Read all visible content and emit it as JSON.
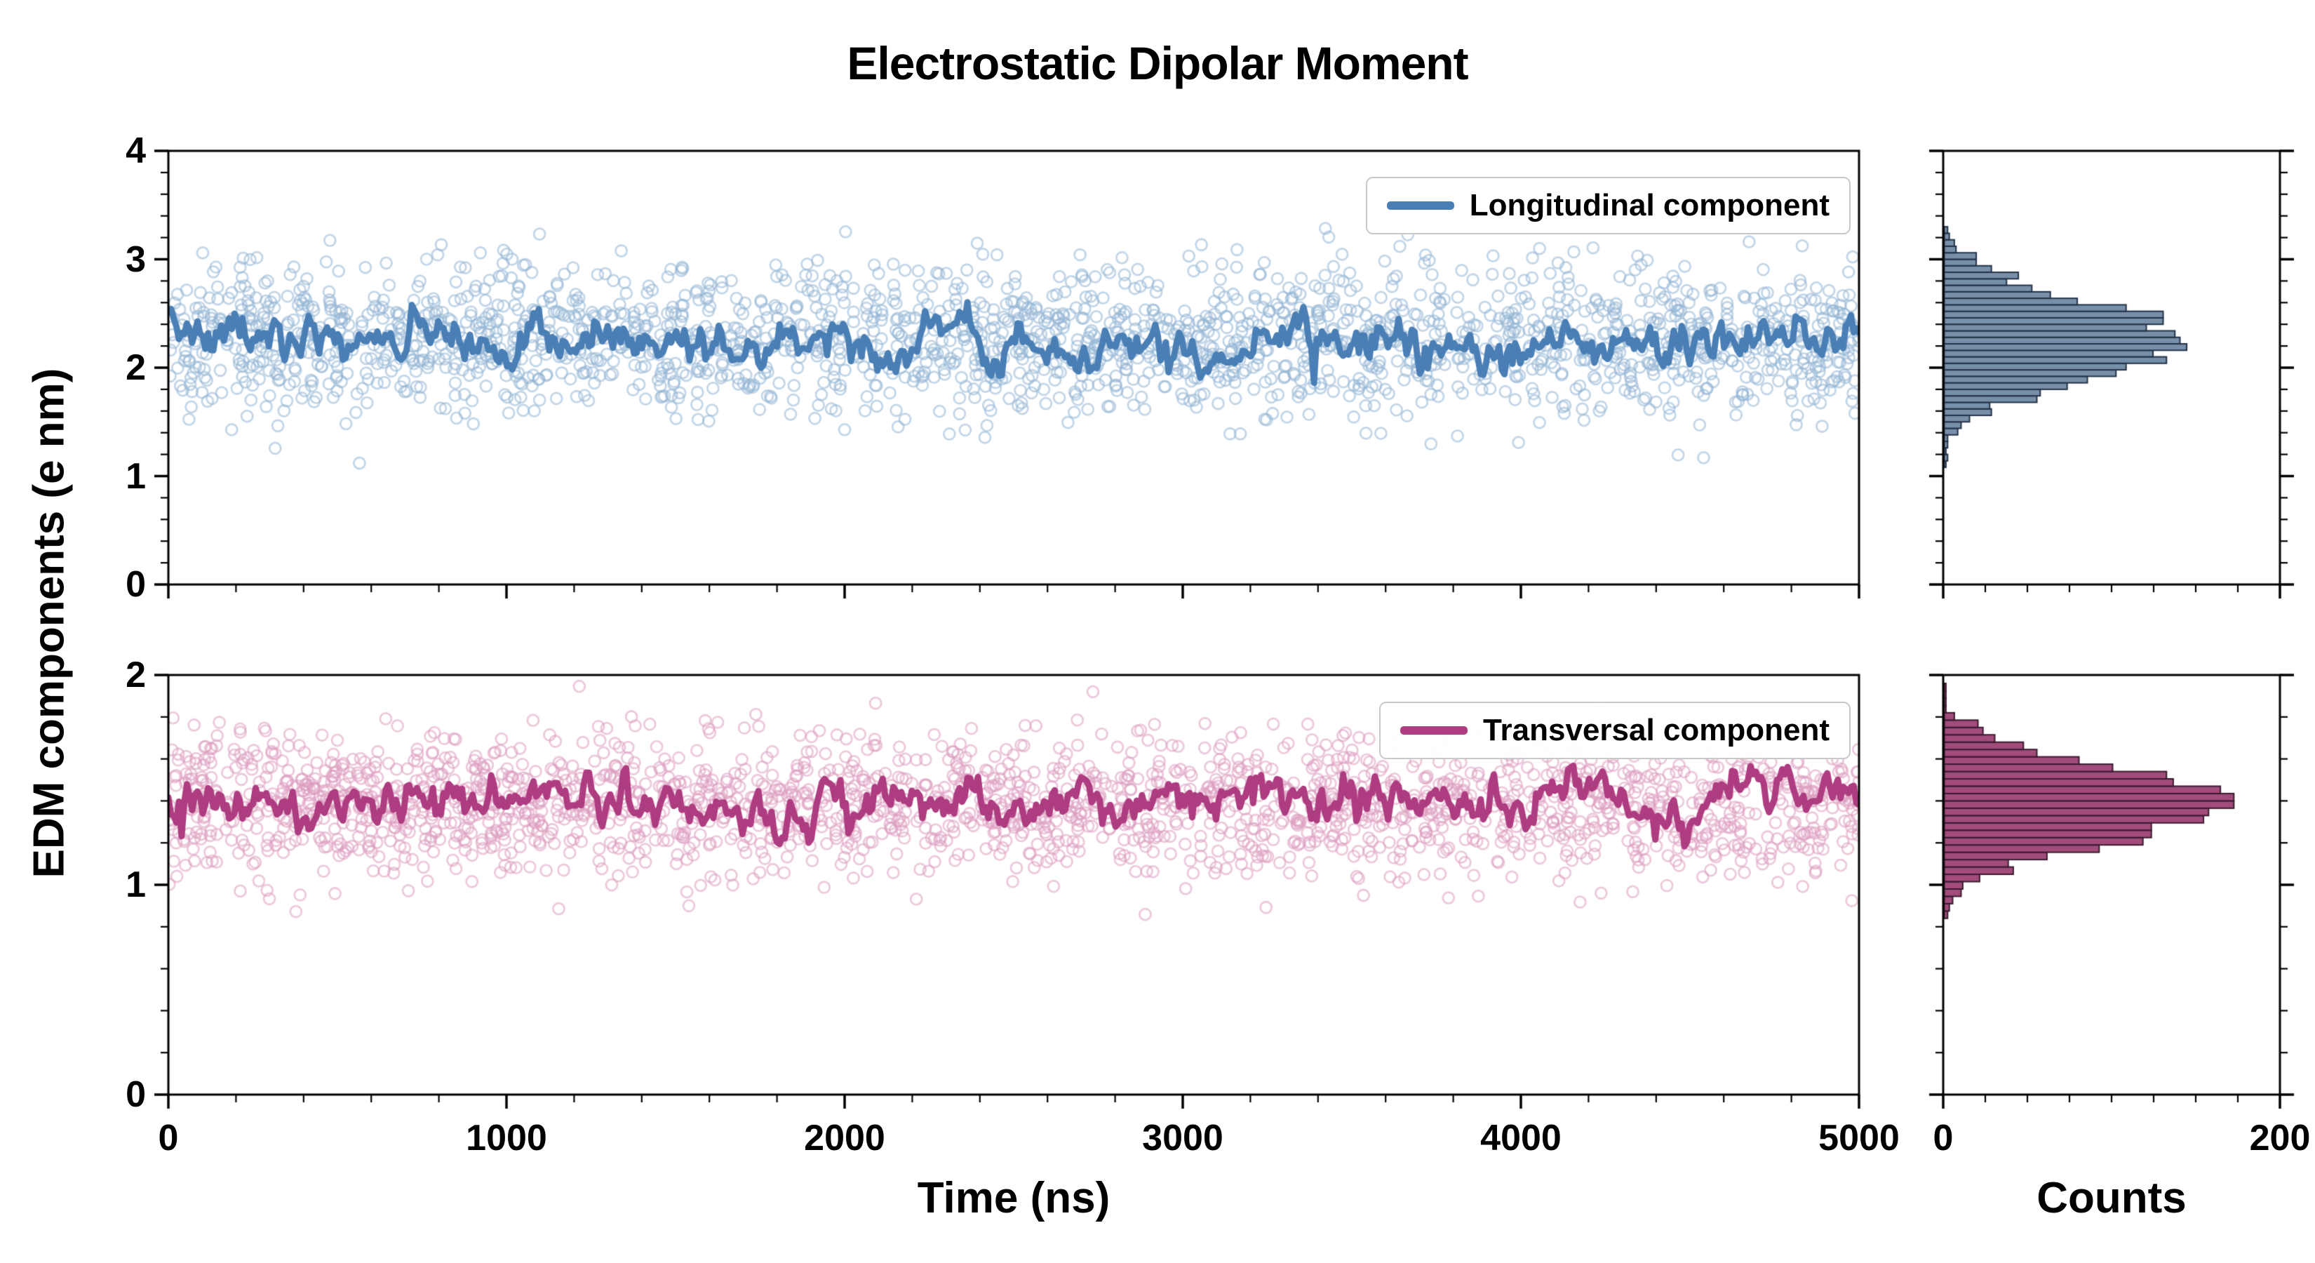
{
  "chart_data": {
    "type": "scatter",
    "title": "Electrostatic Dipolar Moment",
    "xlabel": "Time (ns)",
    "ylabel": "EDM components (e nm)",
    "hist_xlabel": "Counts",
    "layout": {
      "grid": false,
      "legend_position": "upper right",
      "hist_count_range": [
        0,
        200
      ]
    },
    "panels": [
      {
        "id": "longitudinal",
        "legend": "Longitudinal component",
        "row": "top",
        "x_range": [
          0,
          5000
        ],
        "y_range": [
          0,
          4
        ],
        "x_major_ticks": [
          0,
          1000,
          2000,
          3000,
          4000,
          5000
        ],
        "x_tick_labels": [
          "0",
          "1000",
          "2000",
          "3000",
          "4000",
          "5000"
        ],
        "x_minor_step": 200,
        "y_major_ticks": [
          0,
          1,
          2,
          3,
          4
        ],
        "y_tick_labels": [
          "0",
          "1",
          "2",
          "3",
          "4"
        ],
        "y_minor_step": 0.2,
        "show_x_tick_labels": false,
        "scatter": {
          "n": 2100,
          "mean": 2.25,
          "std": 0.36,
          "clip": [
            0.8,
            3.3
          ],
          "seed": 42
        },
        "trend_line": {
          "mean": 2.26,
          "std": 0.13,
          "phi": 0.72,
          "points": 640,
          "seed": 7
        },
        "colors": {
          "scatter": "#92b4d4",
          "line": "#4a7fb5"
        }
      },
      {
        "id": "transversal",
        "legend": "Transversal component",
        "row": "bottom",
        "x_range": [
          0,
          5000
        ],
        "y_range": [
          0,
          2
        ],
        "x_major_ticks": [
          0,
          1000,
          2000,
          3000,
          4000,
          5000
        ],
        "x_tick_labels": [
          "0",
          "1000",
          "2000",
          "3000",
          "4000",
          "5000"
        ],
        "x_minor_step": 200,
        "y_major_ticks": [
          0,
          1,
          2
        ],
        "y_tick_labels": [
          "0",
          "1",
          "2"
        ],
        "y_minor_step": 0.2,
        "show_x_tick_labels": true,
        "scatter": {
          "n": 2100,
          "mean": 1.38,
          "std": 0.17,
          "clip": [
            0.82,
            1.99
          ],
          "seed": 1337
        },
        "trend_line": {
          "mean": 1.39,
          "std": 0.07,
          "phi": 0.72,
          "points": 640,
          "seed": 99
        },
        "colors": {
          "scatter": "#dc9cbf",
          "line": "#ae3c80"
        }
      }
    ],
    "histograms": [
      {
        "id": "longitudinal-hist",
        "row": "top",
        "source_panel": 0,
        "bin_width": 0.06,
        "count_range": [
          0,
          200
        ],
        "count_major_ticks": [
          0,
          200
        ],
        "count_tick_labels": [
          "0",
          "200"
        ],
        "count_minor_step": 25,
        "show_count_tick_labels": false,
        "colors": {
          "fill": "#68839f",
          "edge": "#233247"
        }
      },
      {
        "id": "transversal-hist",
        "row": "bottom",
        "source_panel": 1,
        "bin_width": 0.035,
        "count_range": [
          0,
          200
        ],
        "count_major_ticks": [
          0,
          200
        ],
        "count_tick_labels": [
          "0",
          "200"
        ],
        "count_minor_step": 25,
        "show_count_tick_labels": true,
        "colors": {
          "fill": "#98386e",
          "edge": "#3a1a2f"
        }
      }
    ]
  }
}
